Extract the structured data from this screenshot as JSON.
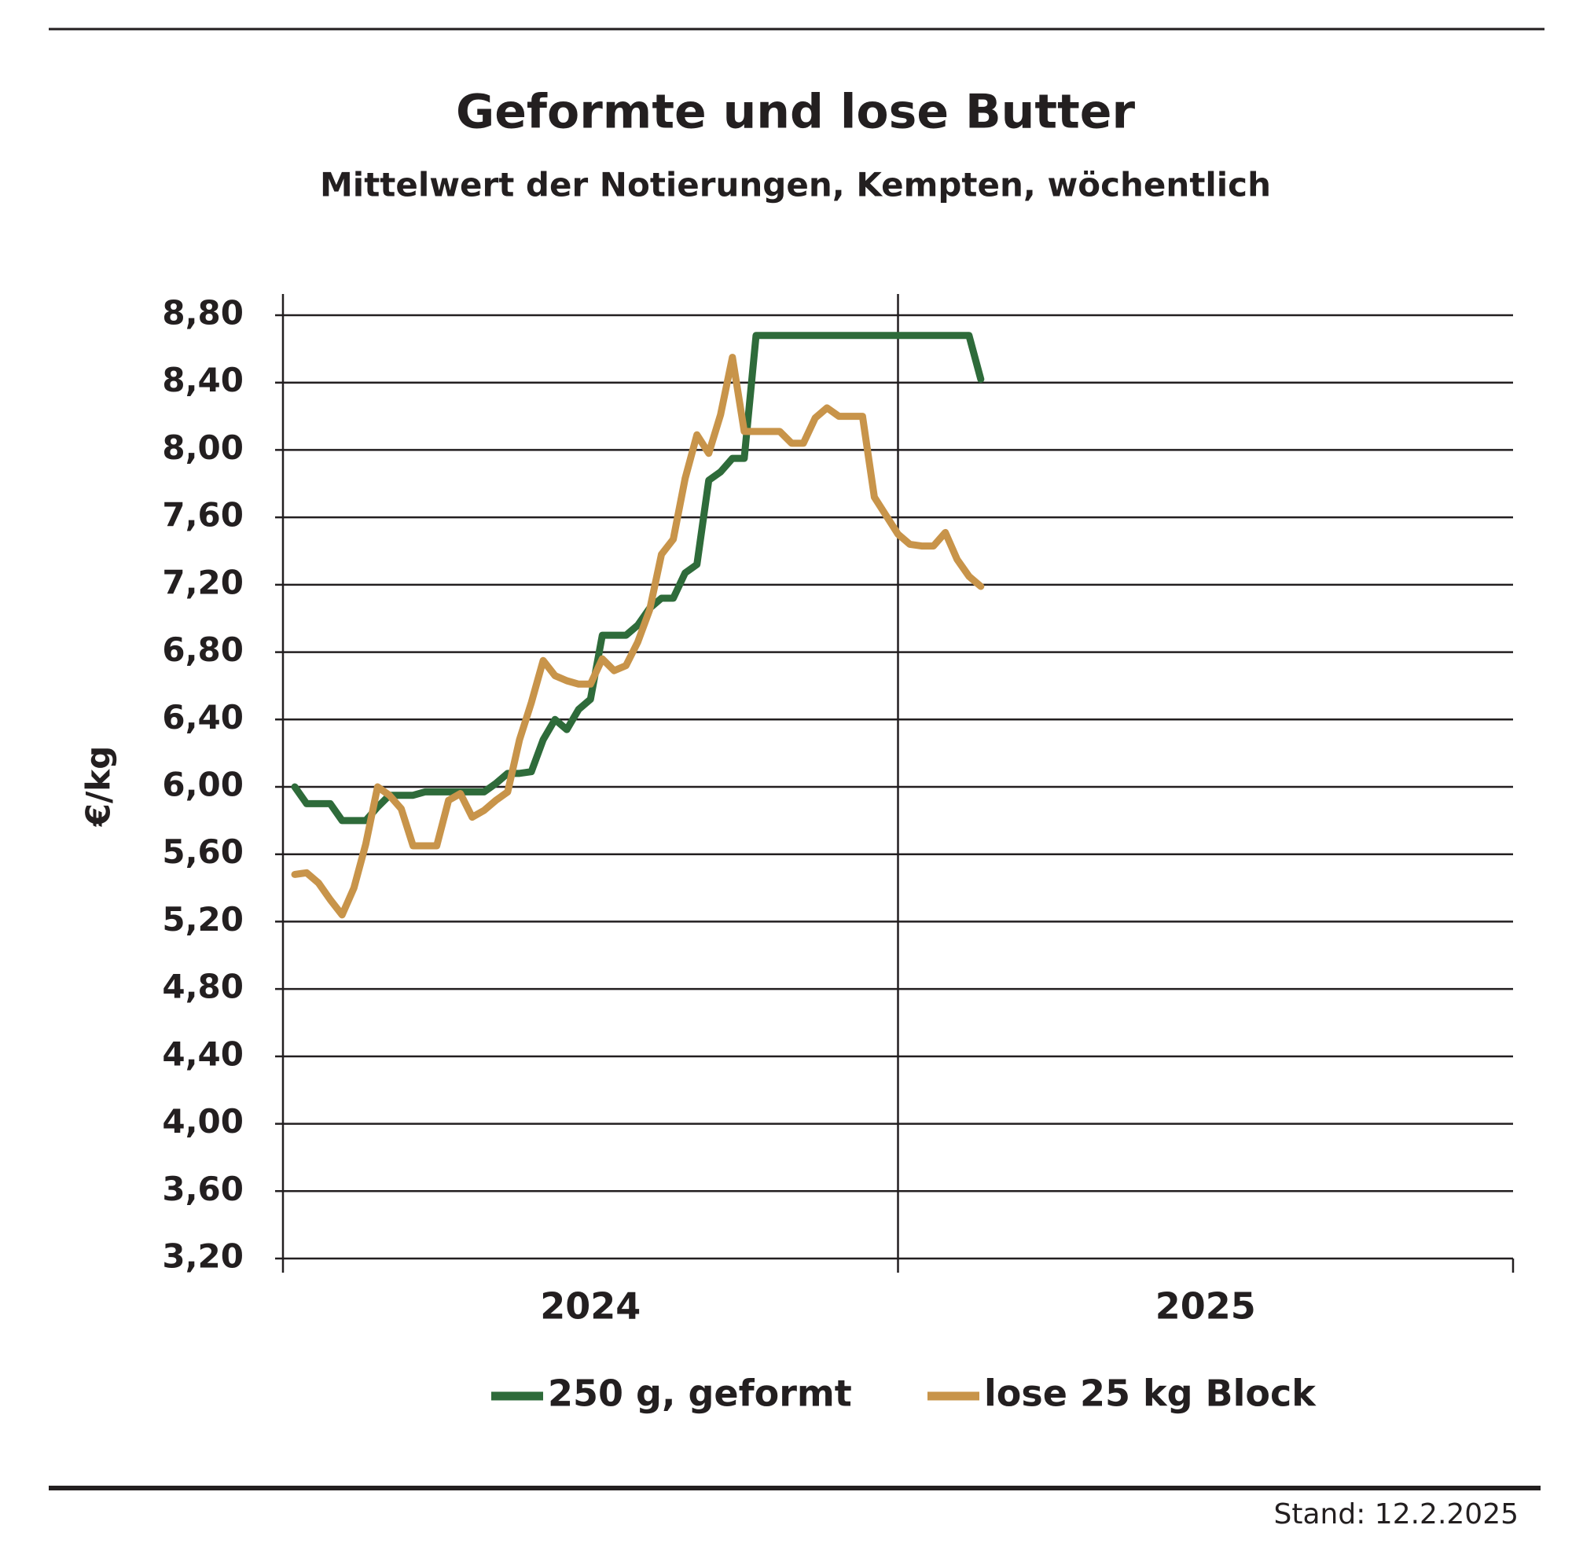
{
  "chart_data": {
    "type": "line",
    "title": "Geformte und lose Butter",
    "subtitle": "Mittelwert der Notierungen, Kempten, wöchentlich",
    "y_label": "€/kg",
    "note": "Stand: 12.2.2025",
    "x": [
      1,
      2,
      3,
      4,
      5,
      6,
      7,
      8,
      9,
      10,
      11,
      12,
      13,
      14,
      15,
      16,
      17,
      18,
      19,
      20,
      21,
      22,
      23,
      24,
      25,
      26,
      27,
      28,
      29,
      30,
      31,
      32,
      33,
      34,
      35,
      36,
      37,
      38,
      39,
      40,
      41,
      42,
      43,
      44,
      45,
      46,
      47,
      48,
      49,
      50,
      51,
      52,
      53,
      54,
      55,
      56,
      57,
      58,
      59
    ],
    "xlim": [
      0,
      104
    ],
    "xticks": [
      0,
      52,
      104
    ],
    "xlabels": [
      {
        "value": 26,
        "label": "2024"
      },
      {
        "value": 78,
        "label": "2025"
      }
    ],
    "ylim": [
      3.2,
      8.8
    ],
    "yticks": [
      {
        "value": 3.2,
        "label": "3,20"
      },
      {
        "value": 3.6,
        "label": "3,60"
      },
      {
        "value": 4.0,
        "label": "4,00"
      },
      {
        "value": 4.4,
        "label": "4,40"
      },
      {
        "value": 4.8,
        "label": "4,80"
      },
      {
        "value": 5.2,
        "label": "5,20"
      },
      {
        "value": 5.6,
        "label": "5,60"
      },
      {
        "value": 6.0,
        "label": "6,00"
      },
      {
        "value": 6.4,
        "label": "6,40"
      },
      {
        "value": 6.8,
        "label": "6,80"
      },
      {
        "value": 7.2,
        "label": "7,20"
      },
      {
        "value": 7.6,
        "label": "7,60"
      },
      {
        "value": 8.0,
        "label": "8,00"
      },
      {
        "value": 8.4,
        "label": "8,40"
      },
      {
        "value": 8.8,
        "label": "8,80"
      }
    ],
    "grid": true,
    "series": [
      {
        "name": "250 g, geformt",
        "color": "#2e6b3a",
        "values": [
          6.0,
          5.9,
          5.9,
          5.9,
          5.8,
          5.8,
          5.8,
          5.88,
          5.95,
          5.95,
          5.95,
          5.97,
          5.97,
          5.97,
          5.97,
          5.97,
          5.97,
          6.02,
          6.08,
          6.08,
          6.09,
          6.28,
          6.4,
          6.34,
          6.46,
          6.52,
          6.9,
          6.9,
          6.9,
          6.96,
          7.06,
          7.12,
          7.12,
          7.27,
          7.32,
          7.82,
          7.87,
          7.95,
          7.95,
          8.68,
          8.68,
          8.68,
          8.68,
          8.68,
          8.68,
          8.68,
          8.68,
          8.68,
          8.68,
          8.68,
          8.68,
          8.68,
          8.68,
          8.68,
          8.68,
          8.68,
          8.68,
          8.68,
          8.42
        ]
      },
      {
        "name": "lose 25 kg Block",
        "color": "#c8944a",
        "values": [
          5.48,
          5.49,
          5.43,
          5.33,
          5.24,
          5.4,
          5.66,
          6.0,
          5.95,
          5.87,
          5.65,
          5.65,
          5.65,
          5.92,
          5.96,
          5.82,
          5.86,
          5.92,
          5.97,
          6.28,
          6.5,
          6.75,
          6.66,
          6.63,
          6.61,
          6.61,
          6.76,
          6.69,
          6.72,
          6.86,
          7.05,
          7.38,
          7.47,
          7.83,
          8.09,
          7.98,
          8.21,
          8.55,
          8.11,
          8.11,
          8.11,
          8.11,
          8.04,
          8.04,
          8.19,
          8.25,
          8.2,
          8.2,
          8.2,
          7.72,
          7.61,
          7.5,
          7.44,
          7.43,
          7.43,
          7.51,
          7.35,
          7.25,
          7.19
        ]
      }
    ]
  }
}
